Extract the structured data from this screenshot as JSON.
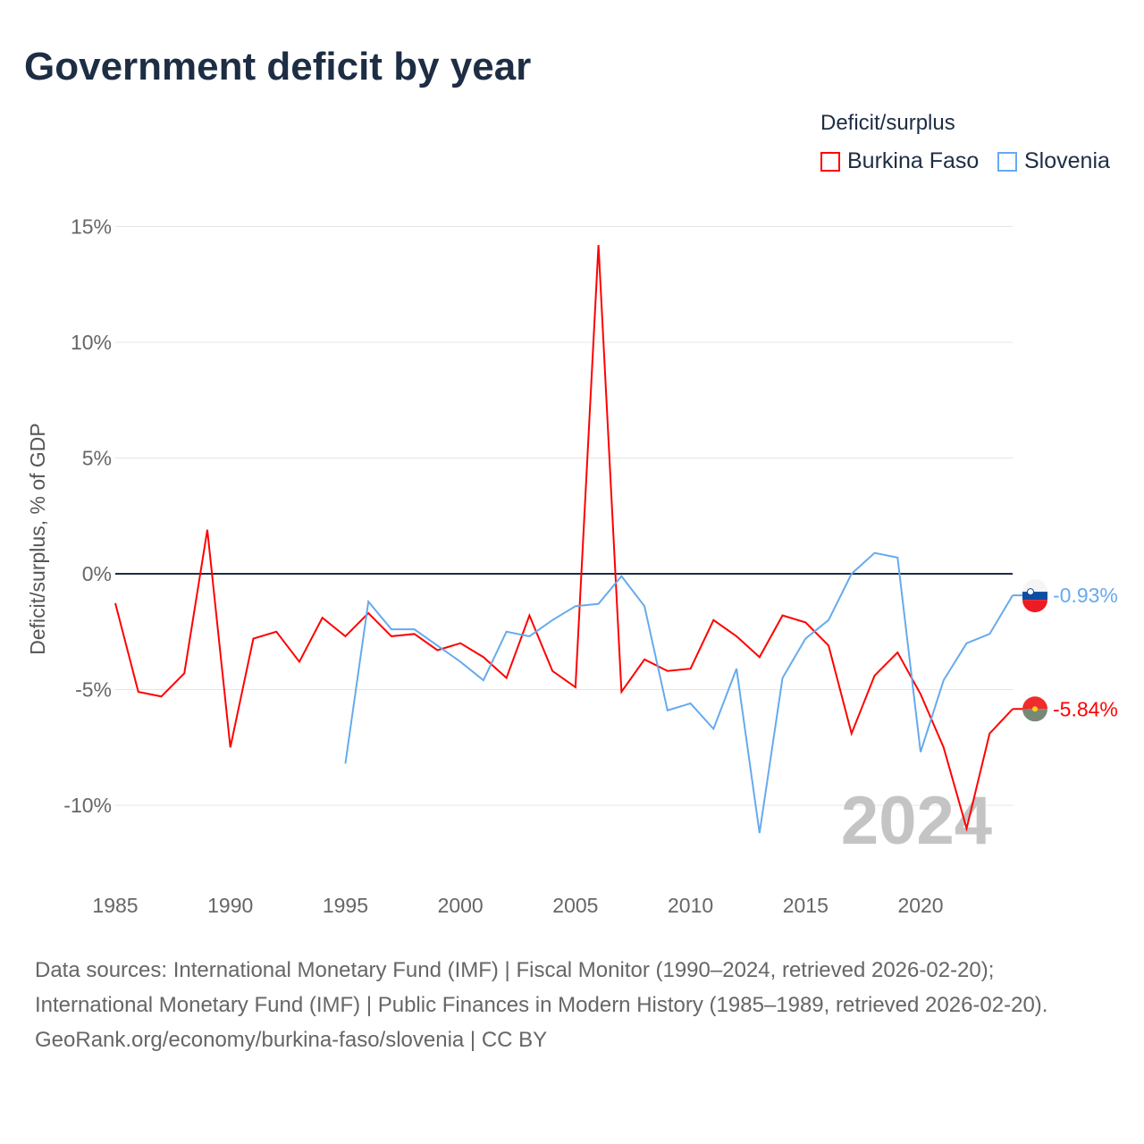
{
  "title": "Government deficit by year",
  "legend": {
    "title": "Deficit/surplus",
    "items": [
      {
        "label": "Burkina Faso",
        "color": "#ff0000"
      },
      {
        "label": "Slovenia",
        "color": "#66aaee"
      }
    ]
  },
  "footer": {
    "sources": "Data sources: International Monetary Fund (IMF) | Fiscal Monitor (1990–2024, retrieved 2026-02-20); International Monetary Fund (IMF) | Public Finances in Modern History (1985–1989, retrieved 2026-02-20).",
    "credit": "GeoRank.org/economy/burkina-faso/slovenia | CC BY"
  },
  "chart_data": {
    "type": "line",
    "title": "Government deficit by year",
    "ylabel": "Deficit/surplus, % of GDP",
    "xlabel": "",
    "xlim": [
      1985,
      2024
    ],
    "ylim": [
      -13,
      16
    ],
    "xticks": [
      1985,
      1990,
      1995,
      2000,
      2005,
      2010,
      2015,
      2020
    ],
    "yticks": [
      15,
      10,
      5,
      0,
      -5,
      -10
    ],
    "ytick_labels": [
      "15%",
      "10%",
      "5%",
      "0%",
      "-5%",
      "-10%"
    ],
    "year_watermark": "2024",
    "series": [
      {
        "name": "Burkina Faso",
        "color": "#ff0000",
        "end_label": "-5.84%",
        "x": [
          1985,
          1986,
          1987,
          1988,
          1989,
          1990,
          1991,
          1992,
          1993,
          1994,
          1995,
          1996,
          1997,
          1998,
          1999,
          2000,
          2001,
          2002,
          2003,
          2004,
          2005,
          2006,
          2007,
          2008,
          2009,
          2010,
          2011,
          2012,
          2013,
          2014,
          2015,
          2016,
          2017,
          2018,
          2019,
          2020,
          2021,
          2022,
          2023,
          2024
        ],
        "values": [
          -1.27,
          -5.1,
          -5.3,
          -4.3,
          1.9,
          -7.5,
          -2.8,
          -2.5,
          -3.8,
          -1.9,
          -2.7,
          -1.7,
          -2.7,
          -2.6,
          -3.3,
          -3.0,
          -3.6,
          -4.5,
          -1.8,
          -4.2,
          -4.9,
          14.2,
          -5.1,
          -3.7,
          -4.2,
          -4.1,
          -2.0,
          -2.7,
          -3.6,
          -1.8,
          -2.1,
          -3.1,
          -6.9,
          -4.4,
          -3.4,
          -5.2,
          -7.5,
          -11.0,
          -6.9,
          -5.84
        ]
      },
      {
        "name": "Slovenia",
        "color": "#66aaee",
        "end_label": "-0.93%",
        "x": [
          1995,
          1996,
          1997,
          1998,
          1999,
          2000,
          2001,
          2002,
          2003,
          2004,
          2005,
          2006,
          2007,
          2008,
          2009,
          2010,
          2011,
          2012,
          2013,
          2014,
          2015,
          2016,
          2017,
          2018,
          2019,
          2020,
          2021,
          2022,
          2023,
          2024
        ],
        "values": [
          -8.2,
          -1.2,
          -2.4,
          -2.4,
          -3.1,
          -3.8,
          -4.6,
          -2.5,
          -2.7,
          -2.0,
          -1.4,
          -1.3,
          -0.1,
          -1.4,
          -5.9,
          -5.6,
          -6.7,
          -4.1,
          -11.2,
          -4.5,
          -2.8,
          -2.0,
          0.0,
          0.9,
          0.7,
          -7.7,
          -4.6,
          -3.0,
          -2.6,
          -0.93
        ]
      }
    ]
  }
}
